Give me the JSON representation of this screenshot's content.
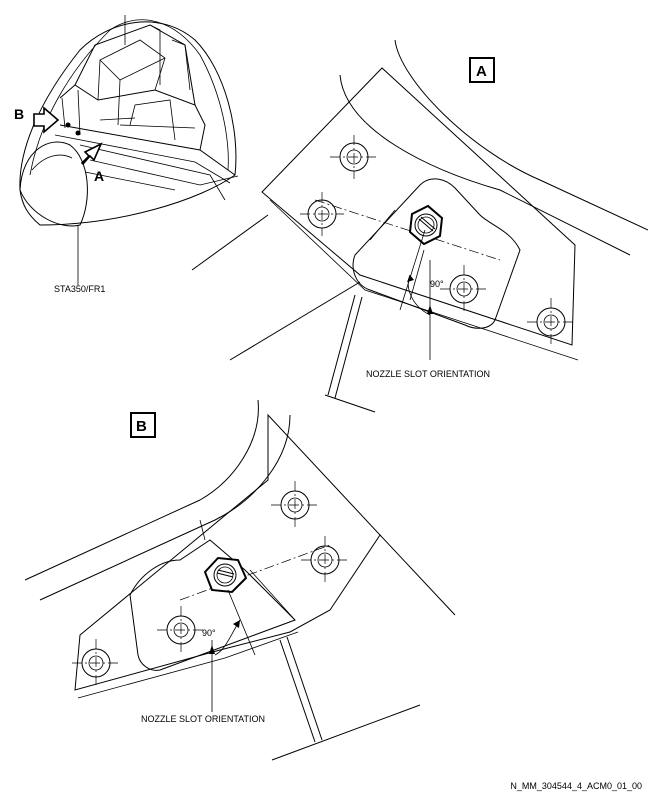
{
  "overview": {
    "arrow_b": "B",
    "arrow_a": "A",
    "station_label": "STA350/FR1"
  },
  "view_a": {
    "title": "A",
    "angle": "90°",
    "callout": "NOZZLE SLOT ORIENTATION"
  },
  "view_b": {
    "title": "B",
    "angle": "90°",
    "callout": "NOZZLE SLOT ORIENTATION"
  },
  "figure_ref": "N_MM_304544_4_ACM0_01_00"
}
